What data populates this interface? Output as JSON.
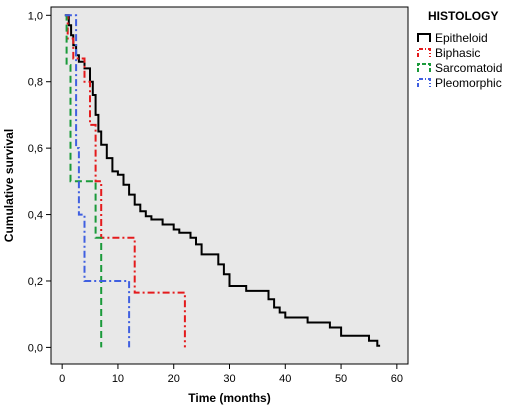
{
  "chart_data": {
    "type": "line",
    "subtype": "kaplan-meier step plot",
    "xlabel": "Time (months)",
    "ylabel": "Cumulative survival",
    "xlim": [
      -2,
      62
    ],
    "ylim": [
      -0.05,
      1.025
    ],
    "xticks": [
      0,
      10,
      20,
      30,
      40,
      50,
      60
    ],
    "xtick_labels": [
      "0",
      "10",
      "20",
      "30",
      "40",
      "50",
      "60"
    ],
    "yticks": [
      0.0,
      0.2,
      0.4,
      0.6,
      0.8,
      1.0
    ],
    "ytick_labels": [
      "0,0",
      "0,2",
      "0,4",
      "0,6",
      "0,8",
      "1,0"
    ],
    "plot_background": "#e8e8e8",
    "grid": false,
    "legend": {
      "title": "HISTOLOGY",
      "placement": "right, outside plot"
    },
    "series": [
      {
        "name": "Epitheloid",
        "color": "#000000",
        "dash": "solid",
        "points": [
          [
            0.5,
            1.0
          ],
          [
            1.2,
            1.0
          ],
          [
            1.2,
            0.97
          ],
          [
            1.6,
            0.97
          ],
          [
            1.6,
            0.94
          ],
          [
            2.0,
            0.94
          ],
          [
            2.0,
            0.91
          ],
          [
            2.5,
            0.91
          ],
          [
            2.5,
            0.88
          ],
          [
            3.0,
            0.88
          ],
          [
            3.0,
            0.86
          ],
          [
            4.0,
            0.86
          ],
          [
            4.0,
            0.84
          ],
          [
            5.0,
            0.84
          ],
          [
            5.0,
            0.8
          ],
          [
            5.5,
            0.8
          ],
          [
            5.5,
            0.76
          ],
          [
            6.0,
            0.76
          ],
          [
            6.0,
            0.7
          ],
          [
            6.5,
            0.7
          ],
          [
            6.5,
            0.65
          ],
          [
            7.0,
            0.65
          ],
          [
            7.0,
            0.61
          ],
          [
            8.0,
            0.61
          ],
          [
            8.0,
            0.57
          ],
          [
            9.0,
            0.57
          ],
          [
            9.0,
            0.53
          ],
          [
            10.0,
            0.53
          ],
          [
            10.0,
            0.52
          ],
          [
            11.0,
            0.52
          ],
          [
            11.0,
            0.49
          ],
          [
            12.0,
            0.49
          ],
          [
            12.0,
            0.46
          ],
          [
            13.0,
            0.46
          ],
          [
            13.0,
            0.43
          ],
          [
            14.0,
            0.43
          ],
          [
            14.0,
            0.41
          ],
          [
            15.0,
            0.41
          ],
          [
            15.0,
            0.395
          ],
          [
            16.0,
            0.395
          ],
          [
            16.0,
            0.385
          ],
          [
            18.0,
            0.385
          ],
          [
            18.0,
            0.37
          ],
          [
            20.0,
            0.37
          ],
          [
            20.0,
            0.355
          ],
          [
            21.0,
            0.355
          ],
          [
            21.0,
            0.345
          ],
          [
            23.0,
            0.345
          ],
          [
            23.0,
            0.33
          ],
          [
            24.0,
            0.33
          ],
          [
            24.0,
            0.31
          ],
          [
            25.0,
            0.31
          ],
          [
            25.0,
            0.28
          ],
          [
            28.0,
            0.28
          ],
          [
            28.0,
            0.25
          ],
          [
            29.0,
            0.25
          ],
          [
            29.0,
            0.22
          ],
          [
            30.0,
            0.22
          ],
          [
            30.0,
            0.185
          ],
          [
            33.0,
            0.185
          ],
          [
            33.0,
            0.17
          ],
          [
            37.0,
            0.17
          ],
          [
            37.0,
            0.145
          ],
          [
            38.0,
            0.145
          ],
          [
            38.0,
            0.12
          ],
          [
            39.0,
            0.12
          ],
          [
            39.0,
            0.105
          ],
          [
            40.0,
            0.105
          ],
          [
            40.0,
            0.09
          ],
          [
            44.0,
            0.09
          ],
          [
            44.0,
            0.075
          ],
          [
            48.0,
            0.075
          ],
          [
            48.0,
            0.06
          ],
          [
            50.0,
            0.06
          ],
          [
            50.0,
            0.035
          ],
          [
            55.0,
            0.035
          ],
          [
            55.0,
            0.02
          ],
          [
            56.5,
            0.02
          ],
          [
            56.5,
            0.005
          ],
          [
            57.0,
            0.005
          ]
        ]
      },
      {
        "name": "Biphasic",
        "color": "#e41a1c",
        "dash": "dash-dot",
        "points": [
          [
            0.5,
            1.0
          ],
          [
            1.0,
            1.0
          ],
          [
            1.0,
            0.93
          ],
          [
            2.0,
            0.93
          ],
          [
            2.0,
            0.87
          ],
          [
            4.0,
            0.87
          ],
          [
            4.0,
            0.8
          ],
          [
            5.0,
            0.8
          ],
          [
            5.0,
            0.67
          ],
          [
            6.0,
            0.67
          ],
          [
            6.0,
            0.5
          ],
          [
            7.0,
            0.5
          ],
          [
            7.0,
            0.33
          ],
          [
            13.0,
            0.33
          ],
          [
            13.0,
            0.165
          ],
          [
            22.0,
            0.165
          ],
          [
            22.0,
            0.0
          ]
        ]
      },
      {
        "name": "Sarcomatoid",
        "color": "#1a9a3a",
        "dash": "dashed",
        "points": [
          [
            0.5,
            1.0
          ],
          [
            0.8,
            1.0
          ],
          [
            0.8,
            0.85
          ],
          [
            1.5,
            0.85
          ],
          [
            1.5,
            0.5
          ],
          [
            6.0,
            0.5
          ],
          [
            6.0,
            0.33
          ],
          [
            7.0,
            0.33
          ],
          [
            7.0,
            0.0
          ]
        ]
      },
      {
        "name": "Pleomorphic",
        "color": "#3f5fe0",
        "dash": "dash-dot",
        "points": [
          [
            0.5,
            1.0
          ],
          [
            2.5,
            1.0
          ],
          [
            2.5,
            0.6
          ],
          [
            3.0,
            0.6
          ],
          [
            3.0,
            0.4
          ],
          [
            4.0,
            0.4
          ],
          [
            4.0,
            0.2
          ],
          [
            12.0,
            0.2
          ],
          [
            12.0,
            0.0
          ]
        ]
      }
    ]
  }
}
